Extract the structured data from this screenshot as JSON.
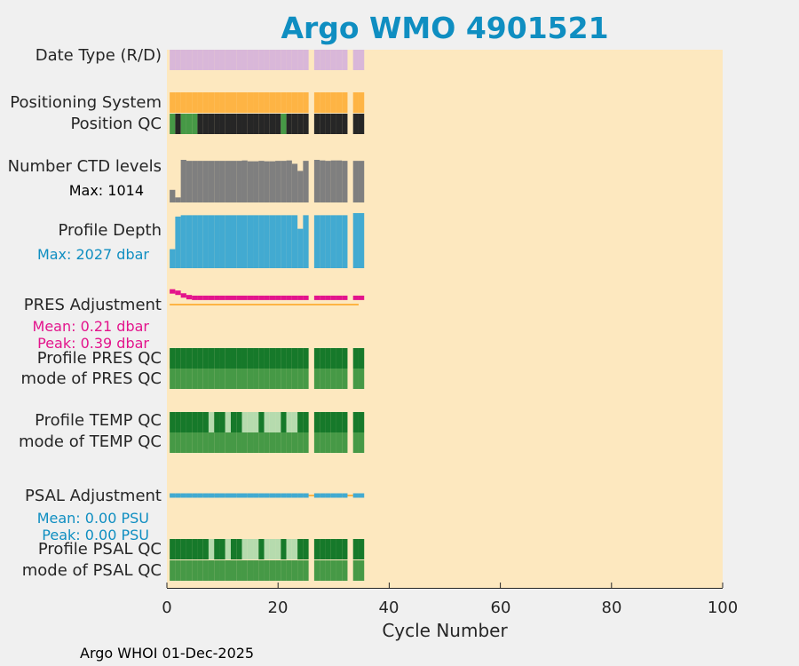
{
  "title": "Argo WMO 4901521",
  "footer": "Argo WHOI 01-Dec-2025",
  "colors": {
    "background": "#fde8bf",
    "date_type": "#d9b7d9",
    "positioning": "#feb444",
    "qc_good_dark": "#16792a",
    "qc_good_light": "#469946",
    "qc_probably_good": "#b6dbae",
    "qc_bad": "#262626",
    "ctd_levels": "#7f7f7f",
    "profile_depth": "#42aad1",
    "pres_adjustment": "#e3148c",
    "psal_adjustment": "#42aad1",
    "zero_line": "#feb444"
  },
  "rows": {
    "date_type": "Date Type (R/D)",
    "positioning": "Positioning System",
    "position_qc": "Position QC",
    "ctd_levels": "Number CTD levels",
    "ctd_max": "Max: 1014",
    "depth": "Profile Depth",
    "depth_max": "Max: 2027 dbar",
    "pres_adj": "PRES Adjustment",
    "pres_mean": "Mean: 0.21 dbar",
    "pres_peak": "Peak: 0.39 dbar",
    "pres_qc_profile": "Profile PRES QC",
    "pres_qc_mode": "mode of PRES QC",
    "temp_qc_profile": "Profile TEMP QC",
    "temp_qc_mode": "mode of TEMP QC",
    "psal_adj": "PSAL Adjustment",
    "psal_mean": "Mean: 0.00 PSU",
    "psal_peak": "Peak: 0.00 PSU",
    "psal_qc_profile": "Profile PSAL QC",
    "psal_qc_mode": "mode of PSAL QC"
  },
  "chart_data": {
    "type": "bar",
    "title": "Argo WMO 4901521",
    "xlabel": "Cycle Number",
    "xlim": [
      0,
      100
    ],
    "xticks": [
      0,
      20,
      40,
      60,
      80,
      100
    ],
    "grid": false,
    "cycles": [
      1,
      2,
      3,
      4,
      5,
      6,
      7,
      8,
      9,
      10,
      11,
      12,
      13,
      14,
      15,
      16,
      17,
      18,
      19,
      20,
      21,
      22,
      23,
      24,
      25,
      27,
      28,
      29,
      30,
      31,
      32,
      34,
      35
    ],
    "series": [
      {
        "name": "Date Type (R/D)",
        "kind": "category",
        "values": [
          "R",
          "R",
          "R",
          "R",
          "R",
          "R",
          "R",
          "R",
          "R",
          "R",
          "R",
          "R",
          "R",
          "R",
          "R",
          "R",
          "R",
          "R",
          "R",
          "R",
          "R",
          "R",
          "R",
          "R",
          "R",
          "R",
          "R",
          "R",
          "R",
          "R",
          "R",
          "R",
          "R"
        ]
      },
      {
        "name": "Positioning System",
        "kind": "category",
        "values": [
          "GPS",
          "GPS",
          "GPS",
          "GPS",
          "GPS",
          "GPS",
          "GPS",
          "GPS",
          "GPS",
          "GPS",
          "GPS",
          "GPS",
          "GPS",
          "GPS",
          "GPS",
          "GPS",
          "GPS",
          "GPS",
          "GPS",
          "GPS",
          "GPS",
          "GPS",
          "GPS",
          "GPS",
          "GPS",
          "GPS",
          "GPS",
          "GPS",
          "GPS",
          "GPS",
          "GPS",
          "GPS",
          "GPS"
        ]
      },
      {
        "name": "Position QC",
        "kind": "qc",
        "values": [
          1,
          4,
          1,
          1,
          1,
          4,
          4,
          4,
          4,
          4,
          4,
          4,
          4,
          4,
          4,
          4,
          4,
          4,
          4,
          4,
          1,
          4,
          4,
          4,
          4,
          4,
          4,
          4,
          4,
          4,
          4,
          4,
          4
        ]
      },
      {
        "name": "Number CTD levels",
        "kind": "bar",
        "max": 1014,
        "values": [
          300,
          120,
          1014,
          990,
          990,
          990,
          990,
          990,
          990,
          990,
          990,
          990,
          990,
          1000,
          980,
          980,
          990,
          980,
          980,
          990,
          990,
          1000,
          920,
          750,
          990,
          1014,
          1000,
          990,
          1000,
          1000,
          990,
          990,
          990
        ]
      },
      {
        "name": "Profile Depth",
        "kind": "bar",
        "max": 2027,
        "values": [
          700,
          1900,
          1950,
          1950,
          1950,
          1950,
          1950,
          1950,
          1950,
          1950,
          1950,
          1950,
          1950,
          1950,
          1950,
          1950,
          1950,
          1950,
          1950,
          1950,
          1950,
          1950,
          1950,
          1450,
          1950,
          1950,
          1950,
          1950,
          1950,
          1950,
          1950,
          2027,
          2027
        ]
      },
      {
        "name": "PRES Adjustment",
        "kind": "line",
        "unit": "dbar",
        "mean": 0.21,
        "peak": 0.39,
        "values": [
          0.39,
          0.35,
          0.27,
          0.22,
          0.2,
          0.2,
          0.2,
          0.2,
          0.2,
          0.2,
          0.2,
          0.2,
          0.2,
          0.2,
          0.2,
          0.2,
          0.2,
          0.2,
          0.2,
          0.2,
          0.2,
          0.2,
          0.2,
          0.2,
          0.2,
          0.2,
          0.2,
          0.2,
          0.2,
          0.2,
          0.2,
          0.2,
          0.2
        ]
      },
      {
        "name": "Profile PRES QC",
        "kind": "qc",
        "values": [
          1,
          1,
          1,
          1,
          1,
          1,
          1,
          1,
          1,
          1,
          1,
          1,
          1,
          1,
          1,
          1,
          1,
          1,
          1,
          1,
          1,
          1,
          1,
          1,
          1,
          1,
          1,
          1,
          1,
          1,
          1,
          1,
          1
        ]
      },
      {
        "name": "mode of PRES QC",
        "kind": "qc",
        "values": [
          1,
          1,
          1,
          1,
          1,
          1,
          1,
          1,
          1,
          1,
          1,
          1,
          1,
          1,
          1,
          1,
          1,
          1,
          1,
          1,
          1,
          1,
          1,
          1,
          1,
          1,
          1,
          1,
          1,
          1,
          1,
          1,
          1
        ]
      },
      {
        "name": "Profile TEMP QC",
        "kind": "qc",
        "values": [
          1,
          1,
          1,
          1,
          1,
          1,
          1,
          2,
          1,
          1,
          2,
          1,
          1,
          2,
          2,
          2,
          1,
          2,
          2,
          2,
          1,
          2,
          2,
          1,
          1,
          1,
          1,
          1,
          1,
          1,
          1,
          1,
          1
        ]
      },
      {
        "name": "mode of TEMP QC",
        "kind": "qc",
        "values": [
          1,
          1,
          1,
          1,
          1,
          1,
          1,
          1,
          1,
          1,
          1,
          1,
          1,
          1,
          1,
          1,
          1,
          1,
          1,
          1,
          1,
          1,
          1,
          1,
          1,
          1,
          1,
          1,
          1,
          1,
          1,
          1,
          1
        ]
      },
      {
        "name": "PSAL Adjustment",
        "kind": "line",
        "unit": "PSU",
        "mean": 0.0,
        "peak": 0.0,
        "values": [
          0,
          0,
          0,
          0,
          0,
          0,
          0,
          0,
          0,
          0,
          0,
          0,
          0,
          0,
          0,
          0,
          0,
          0,
          0,
          0,
          0,
          0,
          0,
          0,
          0,
          0,
          0,
          0,
          0,
          0,
          0,
          0,
          0
        ]
      },
      {
        "name": "Profile PSAL QC",
        "kind": "qc",
        "values": [
          1,
          1,
          1,
          1,
          1,
          1,
          1,
          2,
          1,
          1,
          2,
          1,
          1,
          2,
          2,
          2,
          1,
          2,
          2,
          2,
          1,
          2,
          2,
          1,
          1,
          1,
          1,
          1,
          1,
          1,
          1,
          1,
          1
        ]
      },
      {
        "name": "mode of PSAL QC",
        "kind": "qc",
        "values": [
          1,
          1,
          1,
          1,
          1,
          1,
          1,
          1,
          1,
          1,
          1,
          1,
          1,
          1,
          1,
          1,
          1,
          1,
          1,
          1,
          1,
          1,
          1,
          1,
          1,
          1,
          1,
          1,
          1,
          1,
          1,
          1,
          1
        ]
      }
    ]
  }
}
